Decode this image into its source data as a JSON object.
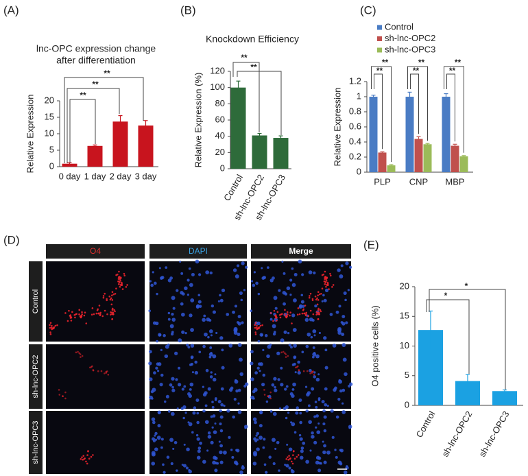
{
  "panel_labels": [
    "(A)",
    "(B)",
    "(C)",
    "(D)",
    "(E)"
  ],
  "chart_data": [
    {
      "type": "bar",
      "title": [
        "lnc-OPC expression change",
        "after differentiation"
      ],
      "y_label": "Relative Expression",
      "categories": [
        "0 day",
        "1 day",
        "2 day",
        "3 day"
      ],
      "values": [
        0.9,
        6.3,
        13.7,
        12.5
      ],
      "errors": [
        0.3,
        0.3,
        1.8,
        1.5
      ],
      "color": "#c8141e",
      "ylim": [
        0,
        20
      ],
      "yticks": [
        0,
        5,
        10,
        15,
        20
      ],
      "annotations": [
        "**",
        "**",
        "**"
      ]
    },
    {
      "type": "bar",
      "title": "Knockdown Efficiency",
      "y_label": "Relative Expression (%)",
      "categories": [
        "Control",
        "sh-lnc-OPC2",
        "sh-lnc-OPC3"
      ],
      "values": [
        100,
        41,
        38
      ],
      "errors": [
        8,
        2.5,
        2.5
      ],
      "color": "#2e6b3a",
      "ylim": [
        0,
        120
      ],
      "yticks": [
        0,
        20,
        40,
        60,
        80,
        100,
        120
      ],
      "annotations": [
        "**",
        "**"
      ]
    },
    {
      "type": "bar",
      "y_label": "Relative Expression",
      "categories": [
        "PLP",
        "CNP",
        "MBP"
      ],
      "series": [
        {
          "name": "Control",
          "color": "#4a7cc4",
          "values": [
            1.0,
            1.0,
            1.0
          ],
          "errors": [
            0.02,
            0.06,
            0.04
          ]
        },
        {
          "name": "sh-lnc-OPC2",
          "color": "#c0504d",
          "values": [
            0.26,
            0.44,
            0.35
          ],
          "errors": [
            0.01,
            0.03,
            0.02
          ]
        },
        {
          "name": "sh-lnc-OPC3",
          "color": "#9bbb59",
          "values": [
            0.09,
            0.37,
            0.21
          ],
          "errors": [
            0.01,
            0.01,
            0.01
          ]
        }
      ],
      "ylim": [
        0,
        1.2
      ],
      "yticks": [
        0,
        0.2,
        0.4,
        0.6,
        0.8,
        1,
        1.2
      ],
      "annotations": [
        "**",
        "**",
        "**",
        "**",
        "**",
        "**"
      ]
    },
    {
      "type": "bar",
      "y_label": "O4 positive cells (%)",
      "categories": [
        "Control",
        "sh-lnc-OPC2",
        "sh-lnc-OPC3"
      ],
      "values": [
        12.7,
        4.1,
        2.4
      ],
      "errors": [
        3.2,
        1.1,
        0.2
      ],
      "color": "#1ba1e2",
      "ylim": [
        0,
        20
      ],
      "yticks": [
        0,
        5,
        10,
        15,
        20
      ],
      "annotations": [
        "*",
        "*"
      ]
    }
  ],
  "micrographs": {
    "columns": [
      "O4",
      "DAPI",
      "Merge"
    ],
    "rows": [
      "Control",
      "sh-lnc-OPC2",
      "sh-lnc-OPC3"
    ]
  }
}
